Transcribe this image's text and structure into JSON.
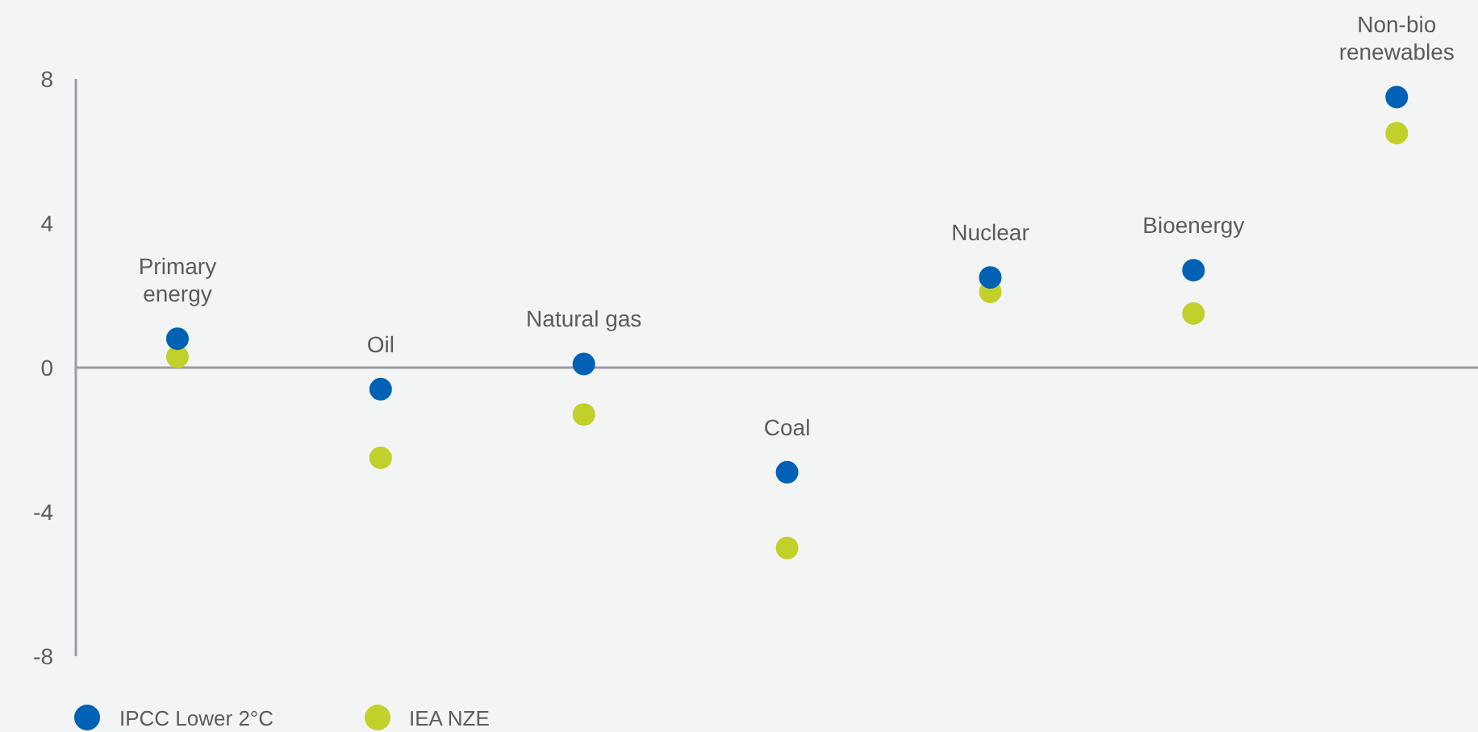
{
  "chart_data": {
    "type": "scatter",
    "categories": [
      "Primary energy",
      "Oil",
      "Natural gas",
      "Coal",
      "Nuclear",
      "Bioenergy",
      "Non-bio renewables"
    ],
    "series": [
      {
        "name": "IPCC Lower 2°C",
        "color": "#0061b5",
        "values": [
          0.8,
          -0.6,
          0.1,
          -2.9,
          2.5,
          2.7,
          7.5
        ]
      },
      {
        "name": "IEA NZE",
        "color": "#c2d02b",
        "values": [
          0.3,
          -2.5,
          -1.3,
          -5.0,
          2.1,
          1.5,
          6.5
        ]
      }
    ],
    "ylim": [
      -8,
      8
    ],
    "yticks": [
      -8,
      -4,
      0,
      4,
      8
    ],
    "ref_lines": [
      {
        "axis": "y",
        "value": 0,
        "color": "#9c9ca3"
      }
    ],
    "legend": "bottom left",
    "marker": "circle"
  }
}
